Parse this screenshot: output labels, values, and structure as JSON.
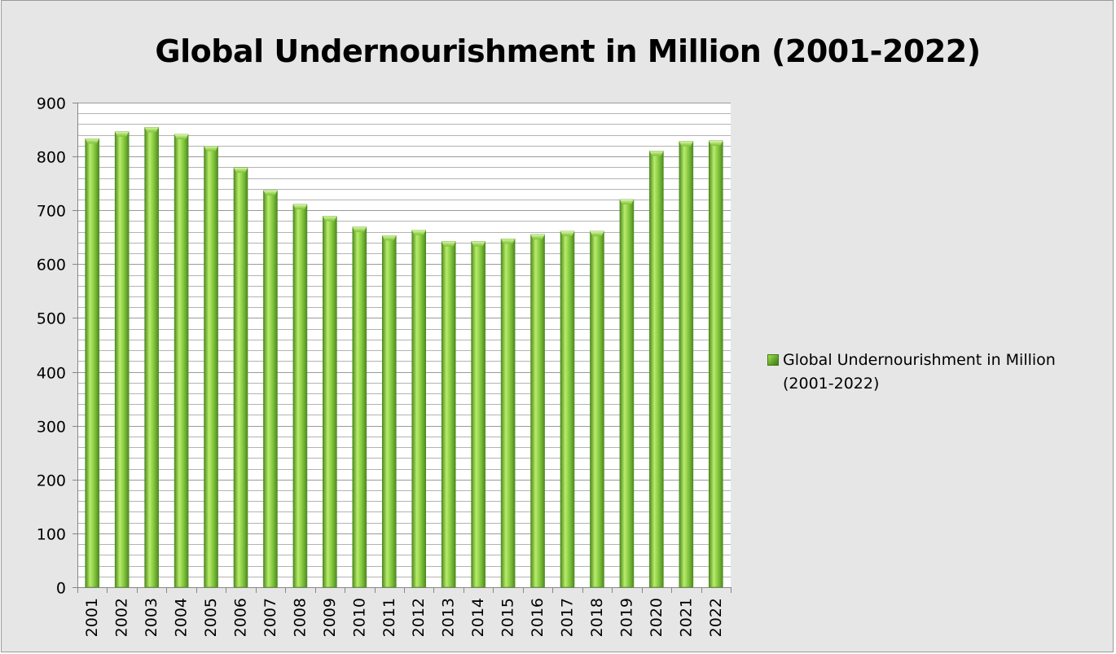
{
  "chart_data": {
    "type": "bar",
    "title": "Global Undernourishment in Million (2001-2022)",
    "xlabel": "",
    "ylabel": "",
    "categories": [
      "2001",
      "2002",
      "2003",
      "2004",
      "2005",
      "2006",
      "2007",
      "2008",
      "2009",
      "2010",
      "2011",
      "2012",
      "2013",
      "2014",
      "2015",
      "2016",
      "2017",
      "2018",
      "2019",
      "2020",
      "2021",
      "2022"
    ],
    "series": [
      {
        "name": "Global Undernourishment in Million (2001-2022)",
        "values": [
          833,
          846,
          854,
          841,
          819,
          779,
          737,
          711,
          689,
          669,
          653,
          663,
          642,
          642,
          647,
          655,
          661,
          661,
          720,
          810,
          828,
          829
        ]
      }
    ],
    "ylim": [
      0,
      900
    ],
    "yticks": [
      0,
      100,
      200,
      300,
      400,
      500,
      600,
      700,
      800,
      900
    ],
    "grid": true,
    "legend_position": "right",
    "colors": {
      "bar": "#7cc13a",
      "bar_dark": "#4e8a1f",
      "bar_light": "#b8ec6a",
      "grid": "#b3b3b3",
      "background": "#e6e6e6",
      "plot_background": "#ffffff"
    }
  }
}
